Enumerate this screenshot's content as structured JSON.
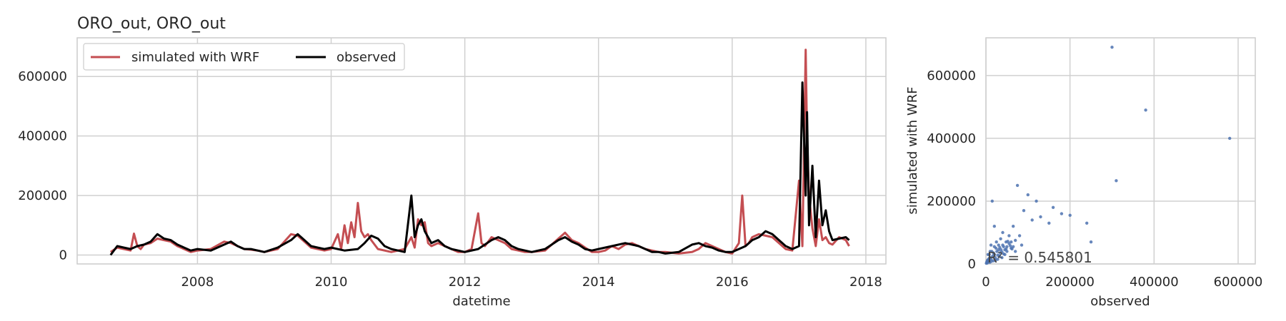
{
  "chart_data": [
    {
      "type": "line",
      "title": "ORO_out, ORO_out",
      "xlabel": "datetime",
      "ylabel": "",
      "xlim": [
        2006.2,
        2018.3
      ],
      "ylim": [
        -30000,
        730000
      ],
      "x_ticks": [
        "2008",
        "2010",
        "2012",
        "2014",
        "2016",
        "2018"
      ],
      "y_ticks": [
        "0",
        "200000",
        "400000",
        "600000"
      ],
      "grid": true,
      "legend": {
        "placement": "top-left",
        "columns": 2
      },
      "series": [
        {
          "name": "simulated with WRF",
          "color": "#c44e52",
          "x": [
            2006.7,
            2006.8,
            2006.9,
            2007.0,
            2007.05,
            2007.1,
            2007.15,
            2007.2,
            2007.3,
            2007.4,
            2007.5,
            2007.6,
            2007.7,
            2007.8,
            2007.9,
            2008.0,
            2008.2,
            2008.4,
            2008.5,
            2008.6,
            2008.7,
            2008.8,
            2008.9,
            2009.0,
            2009.2,
            2009.4,
            2009.5,
            2009.6,
            2009.7,
            2009.8,
            2009.9,
            2010.0,
            2010.1,
            2010.15,
            2010.2,
            2010.25,
            2010.3,
            2010.35,
            2010.4,
            2010.45,
            2010.5,
            2010.55,
            2010.6,
            2010.7,
            2010.8,
            2010.9,
            2011.0,
            2011.1,
            2011.2,
            2011.25,
            2011.3,
            2011.35,
            2011.4,
            2011.45,
            2011.5,
            2011.6,
            2011.7,
            2011.8,
            2011.9,
            2012.0,
            2012.1,
            2012.2,
            2012.25,
            2012.3,
            2012.4,
            2012.5,
            2012.6,
            2012.7,
            2012.8,
            2012.9,
            2013.0,
            2013.2,
            2013.4,
            2013.5,
            2013.6,
            2013.7,
            2013.8,
            2013.9,
            2014.0,
            2014.1,
            2014.2,
            2014.3,
            2014.4,
            2014.5,
            2014.6,
            2014.7,
            2014.8,
            2014.9,
            2015.0,
            2015.2,
            2015.4,
            2015.5,
            2015.6,
            2015.7,
            2015.8,
            2015.9,
            2016.0,
            2016.1,
            2016.15,
            2016.2,
            2016.25,
            2016.3,
            2016.4,
            2016.5,
            2016.6,
            2016.7,
            2016.8,
            2016.9,
            2017.0,
            2017.05,
            2017.1,
            2017.12,
            2017.15,
            2017.2,
            2017.25,
            2017.3,
            2017.35,
            2017.4,
            2017.45,
            2017.5,
            2017.6,
            2017.7,
            2017.75
          ],
          "y": [
            10000,
            25000,
            20000,
            15000,
            72000,
            30000,
            20000,
            35000,
            40000,
            55000,
            50000,
            45000,
            30000,
            20000,
            10000,
            15000,
            20000,
            45000,
            40000,
            30000,
            20000,
            18000,
            15000,
            10000,
            20000,
            70000,
            65000,
            45000,
            25000,
            20000,
            15000,
            20000,
            70000,
            20000,
            100000,
            40000,
            110000,
            60000,
            175000,
            80000,
            60000,
            70000,
            50000,
            20000,
            15000,
            10000,
            15000,
            20000,
            60000,
            25000,
            120000,
            100000,
            110000,
            40000,
            30000,
            40000,
            30000,
            20000,
            10000,
            10000,
            20000,
            140000,
            40000,
            30000,
            60000,
            50000,
            40000,
            20000,
            15000,
            10000,
            10000,
            15000,
            55000,
            75000,
            50000,
            40000,
            25000,
            10000,
            10000,
            15000,
            30000,
            20000,
            35000,
            40000,
            30000,
            20000,
            15000,
            10000,
            10000,
            5000,
            10000,
            20000,
            40000,
            30000,
            20000,
            10000,
            5000,
            40000,
            200000,
            30000,
            40000,
            60000,
            70000,
            65000,
            60000,
            40000,
            20000,
            15000,
            250000,
            30000,
            690000,
            400000,
            200000,
            90000,
            30000,
            120000,
            50000,
            60000,
            40000,
            35000,
            60000,
            50000,
            30000
          ]
        },
        {
          "name": "observed",
          "color": "#000000",
          "x": [
            2006.7,
            2006.8,
            2006.9,
            2007.0,
            2007.1,
            2007.2,
            2007.3,
            2007.4,
            2007.5,
            2007.6,
            2007.7,
            2007.8,
            2007.9,
            2008.0,
            2008.2,
            2008.4,
            2008.5,
            2008.6,
            2008.7,
            2008.8,
            2008.9,
            2009.0,
            2009.2,
            2009.4,
            2009.5,
            2009.6,
            2009.7,
            2009.8,
            2009.9,
            2010.0,
            2010.2,
            2010.4,
            2010.5,
            2010.6,
            2010.7,
            2010.8,
            2010.9,
            2011.0,
            2011.1,
            2011.2,
            2011.25,
            2011.3,
            2011.35,
            2011.4,
            2011.45,
            2011.5,
            2011.6,
            2011.7,
            2011.8,
            2011.9,
            2012.0,
            2012.2,
            2012.4,
            2012.5,
            2012.6,
            2012.7,
            2012.8,
            2012.9,
            2013.0,
            2013.2,
            2013.4,
            2013.5,
            2013.6,
            2013.7,
            2013.8,
            2013.9,
            2014.0,
            2014.2,
            2014.4,
            2014.5,
            2014.6,
            2014.7,
            2014.8,
            2014.9,
            2015.0,
            2015.2,
            2015.4,
            2015.5,
            2015.6,
            2015.7,
            2015.8,
            2015.9,
            2016.0,
            2016.1,
            2016.2,
            2016.3,
            2016.4,
            2016.5,
            2016.6,
            2016.7,
            2016.8,
            2016.9,
            2017.0,
            2017.05,
            2017.1,
            2017.12,
            2017.15,
            2017.2,
            2017.25,
            2017.3,
            2017.35,
            2017.4,
            2017.45,
            2017.5,
            2017.6,
            2017.7,
            2017.75
          ],
          "y": [
            0,
            30000,
            25000,
            20000,
            30000,
            35000,
            45000,
            70000,
            55000,
            50000,
            35000,
            25000,
            15000,
            20000,
            15000,
            35000,
            45000,
            30000,
            20000,
            20000,
            15000,
            10000,
            25000,
            50000,
            70000,
            50000,
            30000,
            25000,
            20000,
            25000,
            15000,
            20000,
            40000,
            65000,
            55000,
            30000,
            20000,
            15000,
            10000,
            200000,
            60000,
            100000,
            120000,
            80000,
            60000,
            40000,
            50000,
            30000,
            20000,
            15000,
            10000,
            20000,
            50000,
            60000,
            50000,
            30000,
            20000,
            15000,
            10000,
            20000,
            50000,
            60000,
            45000,
            35000,
            20000,
            15000,
            20000,
            30000,
            40000,
            35000,
            30000,
            20000,
            10000,
            10000,
            5000,
            10000,
            35000,
            40000,
            30000,
            25000,
            15000,
            10000,
            10000,
            20000,
            30000,
            50000,
            60000,
            80000,
            70000,
            50000,
            30000,
            20000,
            30000,
            580000,
            200000,
            480000,
            100000,
            300000,
            60000,
            250000,
            100000,
            150000,
            80000,
            50000,
            55000,
            60000,
            50000
          ]
        }
      ]
    },
    {
      "type": "scatter",
      "title": "",
      "xlabel": "observed",
      "ylabel": "simulated with WRF",
      "xlim": [
        0,
        600000
      ],
      "ylim": [
        0,
        720000
      ],
      "x_ticks": [
        "0",
        "200000",
        "400000",
        "600000"
      ],
      "y_ticks": [
        "0",
        "200000",
        "400000",
        "600000"
      ],
      "grid": true,
      "color": "#4c72b0",
      "annotation": "R² = 0.545801",
      "points": [
        [
          580000,
          400000
        ],
        [
          380000,
          490000
        ],
        [
          300000,
          690000
        ],
        [
          310000,
          265000
        ],
        [
          250000,
          70000
        ],
        [
          240000,
          130000
        ],
        [
          200000,
          155000
        ],
        [
          180000,
          160000
        ],
        [
          160000,
          180000
        ],
        [
          150000,
          130000
        ],
        [
          130000,
          150000
        ],
        [
          120000,
          200000
        ],
        [
          110000,
          140000
        ],
        [
          100000,
          220000
        ],
        [
          90000,
          170000
        ],
        [
          85000,
          60000
        ],
        [
          75000,
          250000
        ],
        [
          70000,
          75000
        ],
        [
          65000,
          120000
        ],
        [
          60000,
          50000
        ],
        [
          55000,
          90000
        ],
        [
          50000,
          40000
        ],
        [
          48000,
          70000
        ],
        [
          45000,
          30000
        ],
        [
          42000,
          55000
        ],
        [
          40000,
          60000
        ],
        [
          38000,
          20000
        ],
        [
          36000,
          45000
        ],
        [
          34000,
          35000
        ],
        [
          32000,
          25000
        ],
        [
          30000,
          60000
        ],
        [
          28000,
          15000
        ],
        [
          26000,
          40000
        ],
        [
          24000,
          50000
        ],
        [
          22000,
          20000
        ],
        [
          20000,
          30000
        ],
        [
          18000,
          10000
        ],
        [
          16000,
          25000
        ],
        [
          14000,
          40000
        ],
        [
          12000,
          15000
        ],
        [
          10000,
          20000
        ],
        [
          9000,
          5000
        ],
        [
          8000,
          30000
        ],
        [
          7000,
          10000
        ],
        [
          6000,
          15000
        ],
        [
          5000,
          8000
        ],
        [
          4000,
          12000
        ],
        [
          3000,
          3000
        ],
        [
          2000,
          6000
        ],
        [
          1000,
          2000
        ],
        [
          15000,
          200000
        ],
        [
          20000,
          120000
        ],
        [
          40000,
          100000
        ],
        [
          60000,
          70000
        ],
        [
          80000,
          90000
        ],
        [
          25000,
          70000
        ],
        [
          35000,
          80000
        ],
        [
          45000,
          45000
        ],
        [
          55000,
          65000
        ],
        [
          65000,
          55000
        ],
        [
          70000,
          40000
        ],
        [
          50000,
          55000
        ],
        [
          30000,
          45000
        ],
        [
          20000,
          55000
        ],
        [
          10000,
          40000
        ],
        [
          5000,
          30000
        ],
        [
          12000,
          60000
        ],
        [
          18000,
          35000
        ],
        [
          28000,
          28000
        ],
        [
          38000,
          38000
        ],
        [
          48000,
          48000
        ],
        [
          58000,
          58000
        ],
        [
          62000,
          48000
        ],
        [
          52000,
          72000
        ],
        [
          42000,
          32000
        ],
        [
          33000,
          52000
        ],
        [
          23000,
          12000
        ],
        [
          13000,
          8000
        ],
        [
          8000,
          18000
        ],
        [
          3000,
          9000
        ]
      ]
    }
  ]
}
